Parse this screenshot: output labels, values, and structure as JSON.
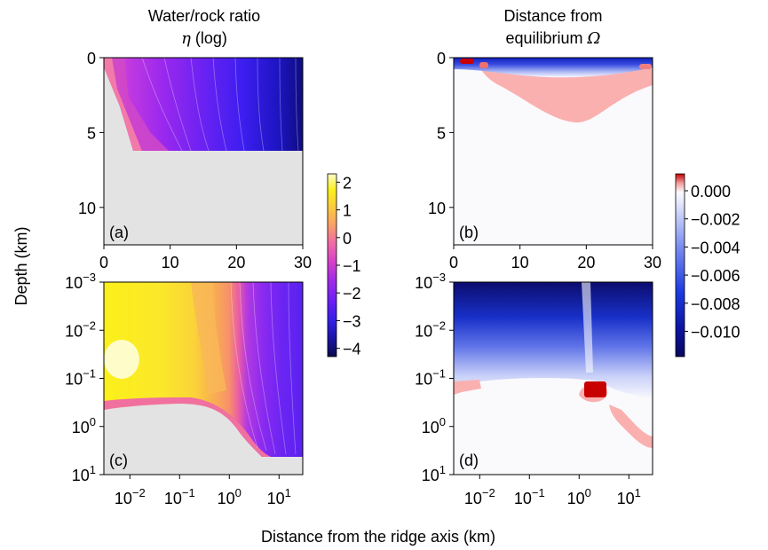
{
  "figure": {
    "xlabel": "Distance from the ridge axis (km)",
    "ylabel": "Depth (km)"
  },
  "titles": {
    "left_line1": "Water/rock ratio",
    "left_line2_symbol": "η",
    "left_line2_text": " (log)",
    "right_line1": "Distance from",
    "right_line2_text": "equilibrium ",
    "right_line2_symbol": "Ω"
  },
  "colors": {
    "background_gray": "#e3e3e3",
    "eta_colormap": [
      "#0b0b4a",
      "#1a13a6",
      "#3320e8",
      "#6a1ef5",
      "#a12ae8",
      "#d840c8",
      "#f06aa8",
      "#f9a068",
      "#fbcc3c",
      "#fbf01a",
      "#fefcc8"
    ],
    "omega_positive": "#cc0000",
    "omega_slight_positive": "#fbb0b0",
    "omega_zero": "#fafafd",
    "omega_negative": "#0a0a6a"
  },
  "chart_data": [
    {
      "panel": "(a)",
      "type": "heatmap",
      "quantity": "log water/rock ratio η",
      "x_range": [
        0,
        30
      ],
      "y_range": [
        12.5,
        0
      ],
      "x_ticks": [
        "0",
        "10",
        "20",
        "30"
      ],
      "y_ticks": [
        "0",
        "5",
        "10"
      ],
      "fields": [
        {
          "x": 1,
          "log_eta": -0.5
        },
        {
          "x": 3,
          "log_eta": -1.2
        },
        {
          "x": 5,
          "log_eta": -1.6
        },
        {
          "x": 10,
          "log_eta": -2.0
        },
        {
          "x": 15,
          "log_eta": -2.4
        },
        {
          "x": 20,
          "log_eta": -2.8
        },
        {
          "x": 25,
          "log_eta": -3.3
        },
        {
          "x": 30,
          "log_eta": -4.0
        }
      ],
      "no_data_below_depth_km": 6
    },
    {
      "panel": "(b)",
      "type": "heatmap",
      "quantity": "distance from equilibrium Ω",
      "x_range": [
        0,
        30
      ],
      "y_range": [
        12.5,
        0
      ],
      "x_ticks": [
        "0",
        "10",
        "20",
        "30"
      ],
      "y_ticks": [
        "0",
        "5",
        "10"
      ],
      "features": [
        {
          "region": "near-surface band",
          "omega": -0.01
        },
        {
          "region": "pink lobe under axis",
          "x": [
            4,
            28
          ],
          "max_depth_km": 4.2,
          "omega": 0.0002
        },
        {
          "region": "small red spots",
          "x": [
            2,
            4
          ],
          "depth_km": 0.5,
          "omega": 0.001
        }
      ]
    },
    {
      "panel": "(c)",
      "type": "heatmap",
      "quantity": "log water/rock ratio η",
      "x_scale": "log",
      "y_scale": "log",
      "x_range": [
        0.003,
        30
      ],
      "y_range": [
        10,
        0.001
      ],
      "x_ticks": [
        "10^-2",
        "10^-1",
        "10^0",
        "10^1"
      ],
      "y_ticks": [
        "10^-3",
        "10^-2",
        "10^-1",
        "10^0",
        "10^1"
      ],
      "fields": [
        {
          "x": 0.005,
          "log_eta": 2.0
        },
        {
          "x": 0.05,
          "log_eta": 1.5
        },
        {
          "x": 0.5,
          "log_eta": 0.7
        },
        {
          "x": 2,
          "log_eta": -0.5
        },
        {
          "x": 10,
          "log_eta": -2.5
        },
        {
          "x": 30,
          "log_eta": -3.5
        }
      ]
    },
    {
      "panel": "(d)",
      "type": "heatmap",
      "quantity": "distance from equilibrium Ω",
      "x_scale": "log",
      "y_scale": "log",
      "x_range": [
        0.003,
        30
      ],
      "y_range": [
        10,
        0.001
      ],
      "x_ticks": [
        "10^-2",
        "10^-1",
        "10^0",
        "10^1"
      ],
      "y_ticks": [
        "10^-3",
        "10^-2",
        "10^-1",
        "10^0",
        "10^1"
      ],
      "features": [
        {
          "region": "shallow band",
          "omega": -0.011
        },
        {
          "region": "red patch",
          "x": [
            1.2,
            2.5
          ],
          "depth_km": [
            0.15,
            0.35
          ],
          "omega": 0.001
        },
        {
          "region": "pink patch at right",
          "x": [
            3,
            30
          ],
          "depth_km": [
            0.6,
            5
          ],
          "omega": 0.0002
        }
      ]
    }
  ],
  "colorbars": {
    "eta": {
      "ticks": [
        "2",
        "1",
        "0",
        "−1",
        "−2",
        "−3",
        "−4"
      ],
      "range": [
        -4.3,
        2.3
      ]
    },
    "omega": {
      "ticks": [
        "0.000",
        "−0.002",
        "−0.004",
        "−0.006",
        "−0.008",
        "−0.010"
      ],
      "range": [
        -0.0118,
        0.0012
      ]
    }
  }
}
